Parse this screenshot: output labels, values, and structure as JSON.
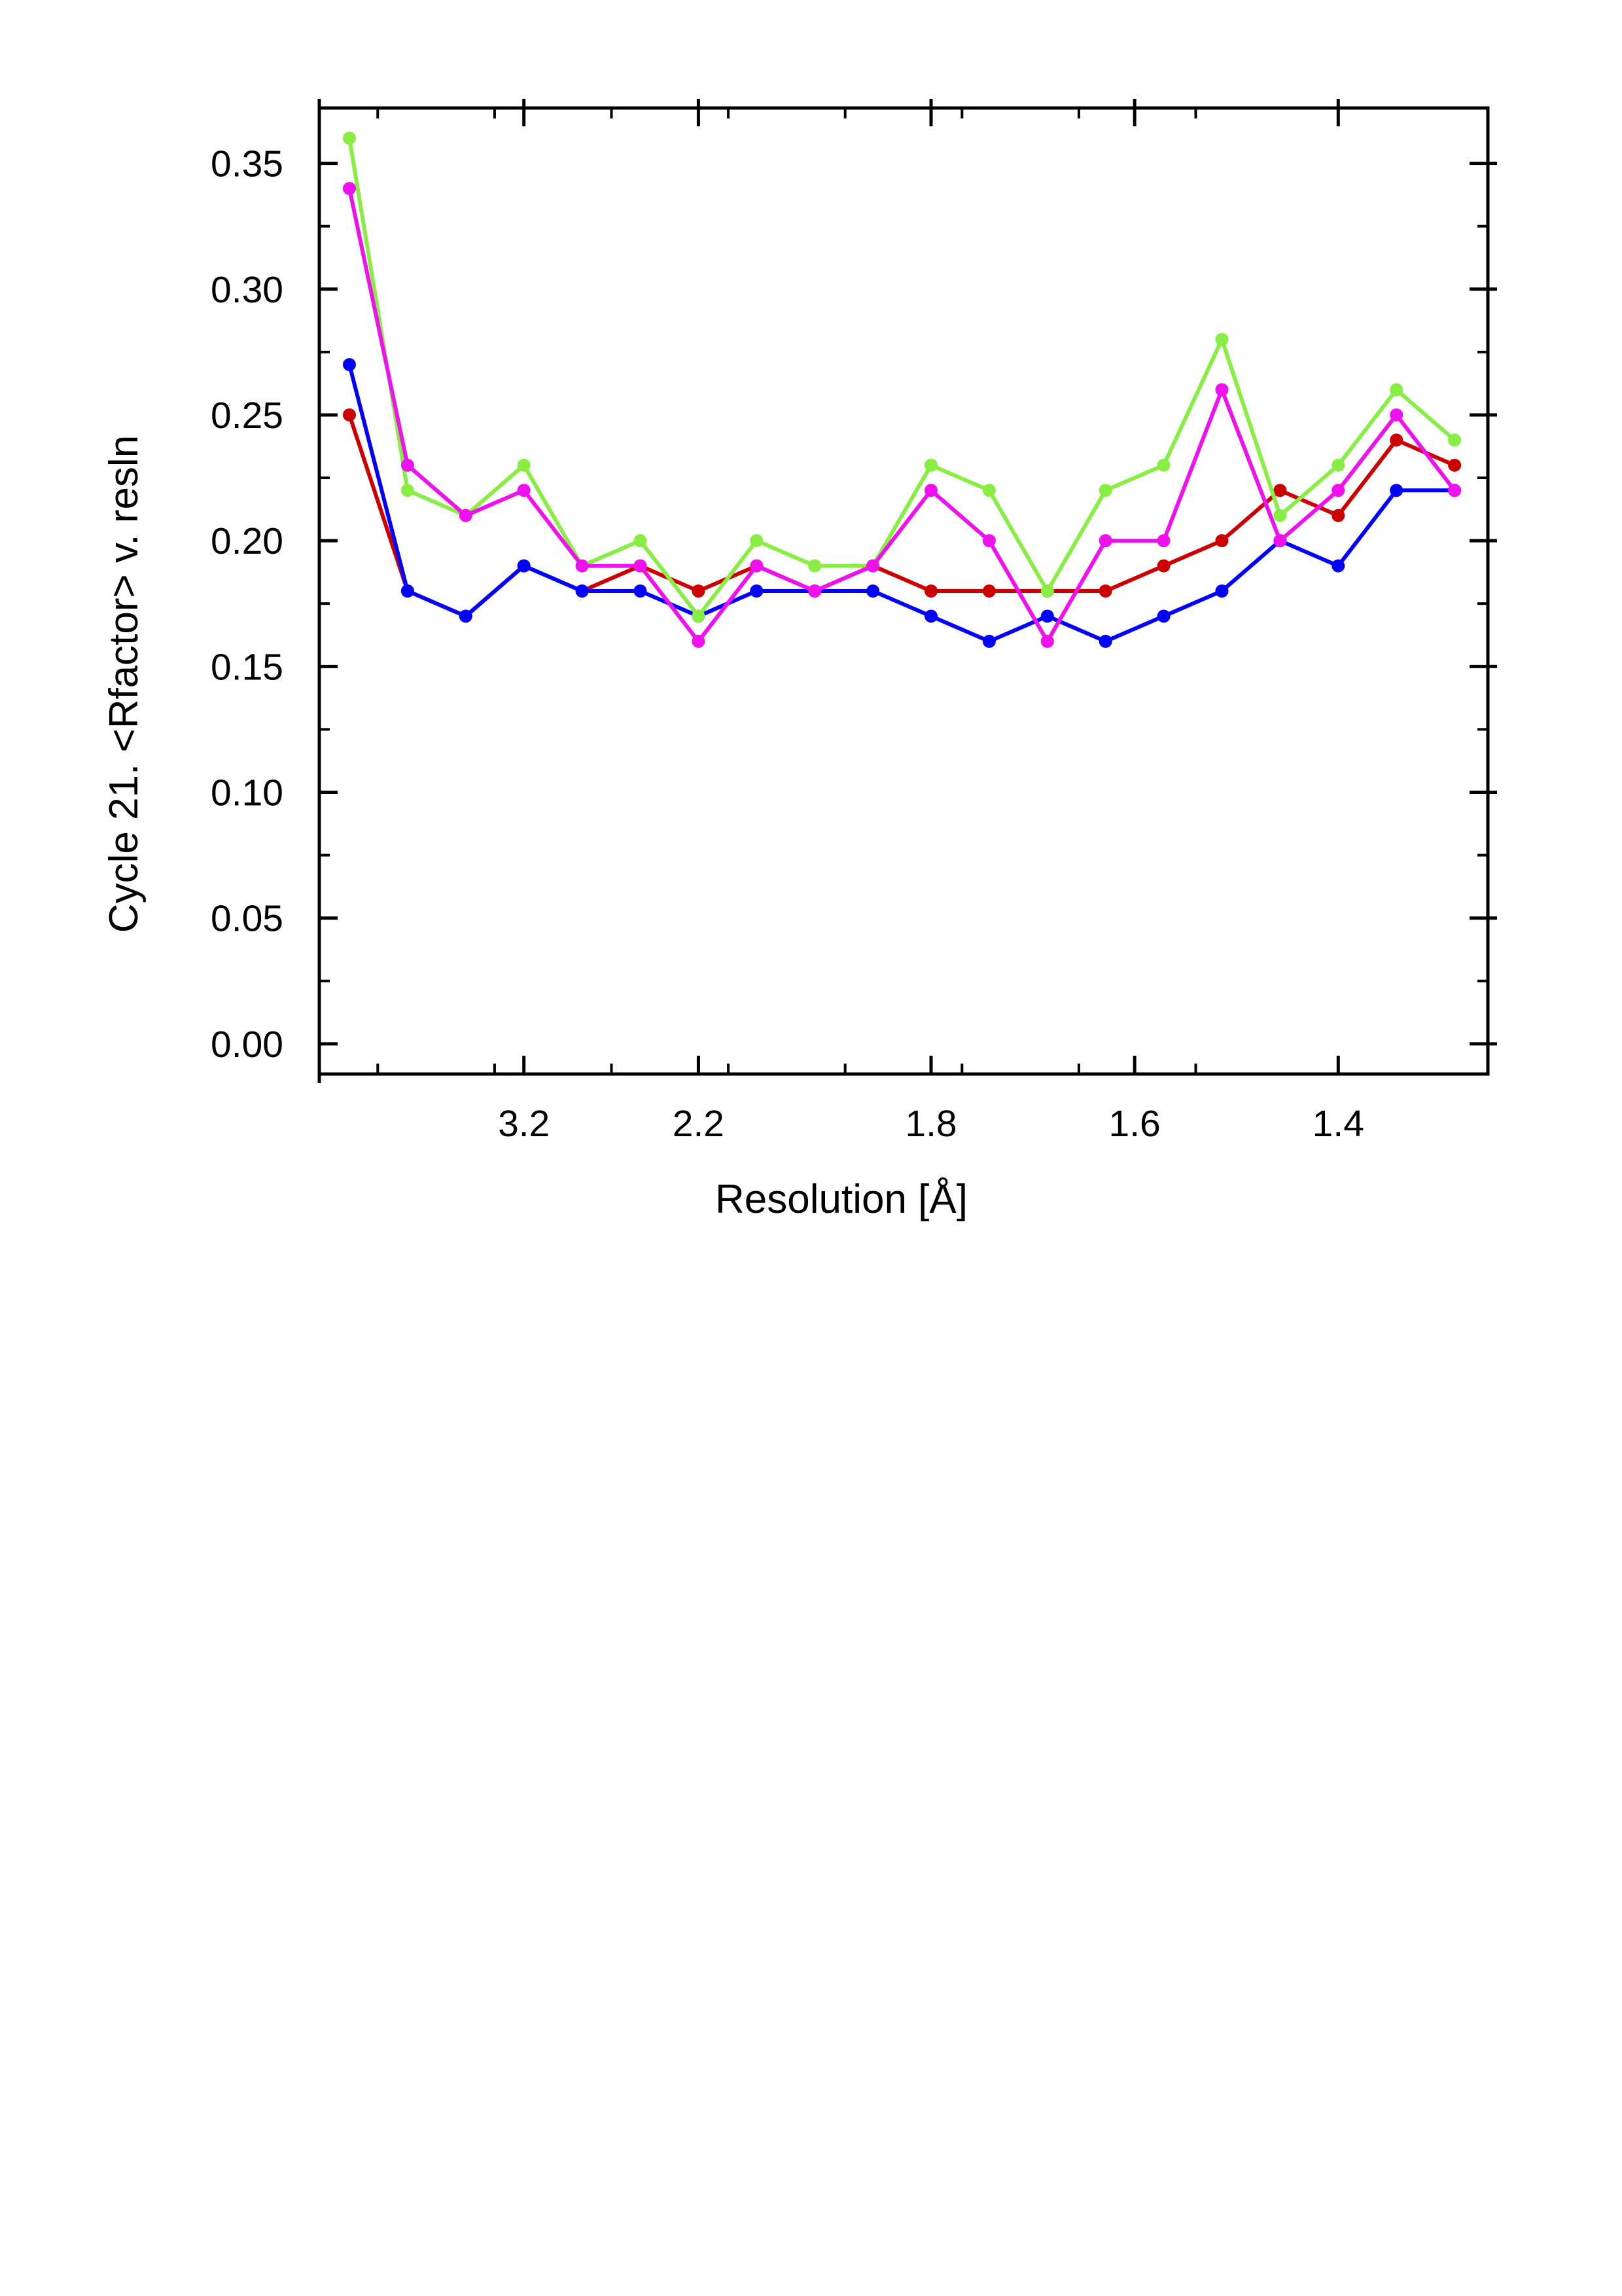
{
  "chart_data": {
    "type": "line",
    "xlabel": "Resolution [Å]",
    "ylabel": "Cycle 21. <Rfactor> v. resln",
    "ylim": [
      -0.012,
      0.372
    ],
    "y_ticks": [
      "0.00",
      "0.05",
      "0.10",
      "0.15",
      "0.20",
      "0.25",
      "0.30",
      "0.35"
    ],
    "y_tick_values": [
      0.0,
      0.05,
      0.1,
      0.15,
      0.2,
      0.25,
      0.3,
      0.35
    ],
    "x_labeled_ticks": [
      {
        "label": "3.2",
        "bin": 3
      },
      {
        "label": "2.2",
        "bin": 6
      },
      {
        "label": "1.8",
        "bin": 10
      },
      {
        "label": "1.6",
        "bin": 13.5
      },
      {
        "label": "1.4",
        "bin": 17
      }
    ],
    "x_bins": 20,
    "grid": false,
    "series": [
      {
        "color": "#cc0000",
        "values": [
          0.25,
          0.18,
          0.17,
          0.19,
          0.18,
          0.19,
          0.18,
          0.19,
          0.18,
          0.19,
          0.18,
          0.18,
          0.18,
          0.18,
          0.19,
          0.2,
          0.22,
          0.21,
          0.24,
          0.23
        ]
      },
      {
        "color": "#0000ff",
        "values": [
          0.27,
          0.18,
          0.17,
          0.19,
          0.18,
          0.18,
          0.17,
          0.18,
          0.18,
          0.18,
          0.17,
          0.16,
          0.17,
          0.16,
          0.17,
          0.18,
          0.2,
          0.19,
          0.22,
          0.22
        ]
      },
      {
        "color": "#88ee44",
        "values": [
          0.36,
          0.22,
          0.21,
          0.23,
          0.19,
          0.2,
          0.17,
          0.2,
          0.19,
          0.19,
          0.23,
          0.22,
          0.18,
          0.22,
          0.23,
          0.28,
          0.21,
          0.23,
          0.26,
          0.24
        ]
      },
      {
        "color": "#ee11ee",
        "values": [
          0.34,
          0.23,
          0.21,
          0.22,
          0.19,
          0.19,
          0.16,
          0.19,
          0.18,
          0.19,
          0.22,
          0.2,
          0.16,
          0.2,
          0.2,
          0.26,
          0.2,
          0.22,
          0.25,
          0.22
        ]
      }
    ]
  }
}
